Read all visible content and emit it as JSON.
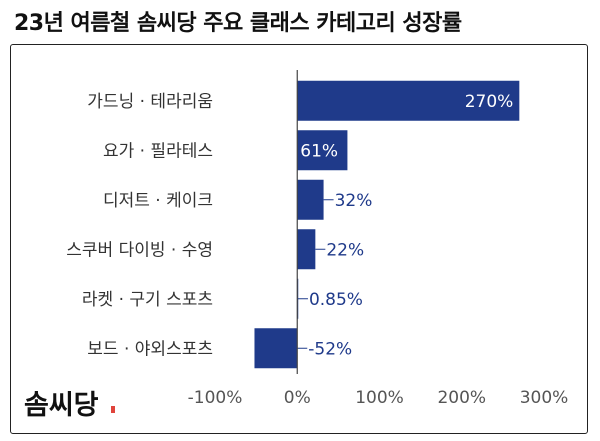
{
  "title": "23년 여름철 솜씨당 주요 클래스 카테고리 성장률",
  "logo": {
    "text": "솜씨당",
    "color": "#111111",
    "accent": "#e0443c"
  },
  "colors": {
    "bar": "#1f3a8a",
    "axis": "#444444",
    "label_out": "#1f3a8a"
  },
  "chart_data": {
    "type": "bar",
    "orientation": "horizontal",
    "title": "23년 여름철 솜씨당 주요 클래스 카테고리 성장률",
    "categories": [
      "가드닝 · 테라리움",
      "요가 · 필라테스",
      "디저트 · 케이크",
      "스쿠버 다이빙 · 수영",
      "라켓 · 구기 스포츠",
      "보드 · 야외스포츠"
    ],
    "values": [
      270,
      61,
      32,
      22,
      0.85,
      -52
    ],
    "value_labels": [
      "270%",
      "61%",
      "32%",
      "22%",
      "0.85%",
      "-52%"
    ],
    "x_ticks": [
      -100,
      0,
      100,
      200,
      300
    ],
    "x_tick_labels": [
      "-100%",
      "0%",
      "100%",
      "200%",
      "300%"
    ],
    "xlim": [
      -100,
      300
    ],
    "grid": false
  }
}
